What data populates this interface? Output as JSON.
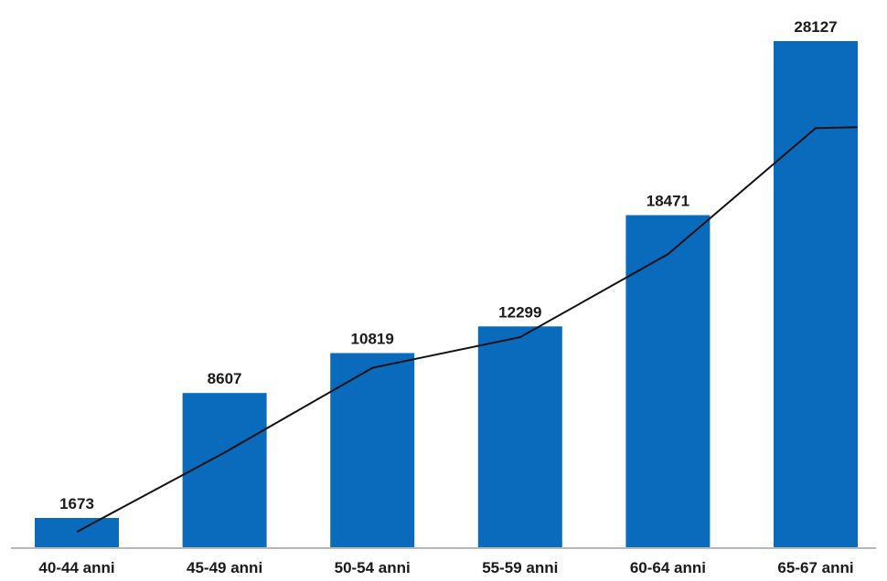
{
  "chart_data": {
    "type": "bar",
    "categories": [
      "40-44 anni",
      "45-49 anni",
      "50-54 anni",
      "55-59 anni",
      "60-64 anni",
      "65-67 anni"
    ],
    "values": [
      1673,
      8607,
      10819,
      12299,
      18471,
      28127
    ],
    "trend_line": [
      900,
      5300,
      10000,
      11700,
      16300,
      23300
    ],
    "ylim": [
      0,
      30000
    ],
    "grid": false,
    "legend": "none",
    "colors": {
      "bar": "#0a6bbd",
      "trend": "#111111"
    }
  }
}
